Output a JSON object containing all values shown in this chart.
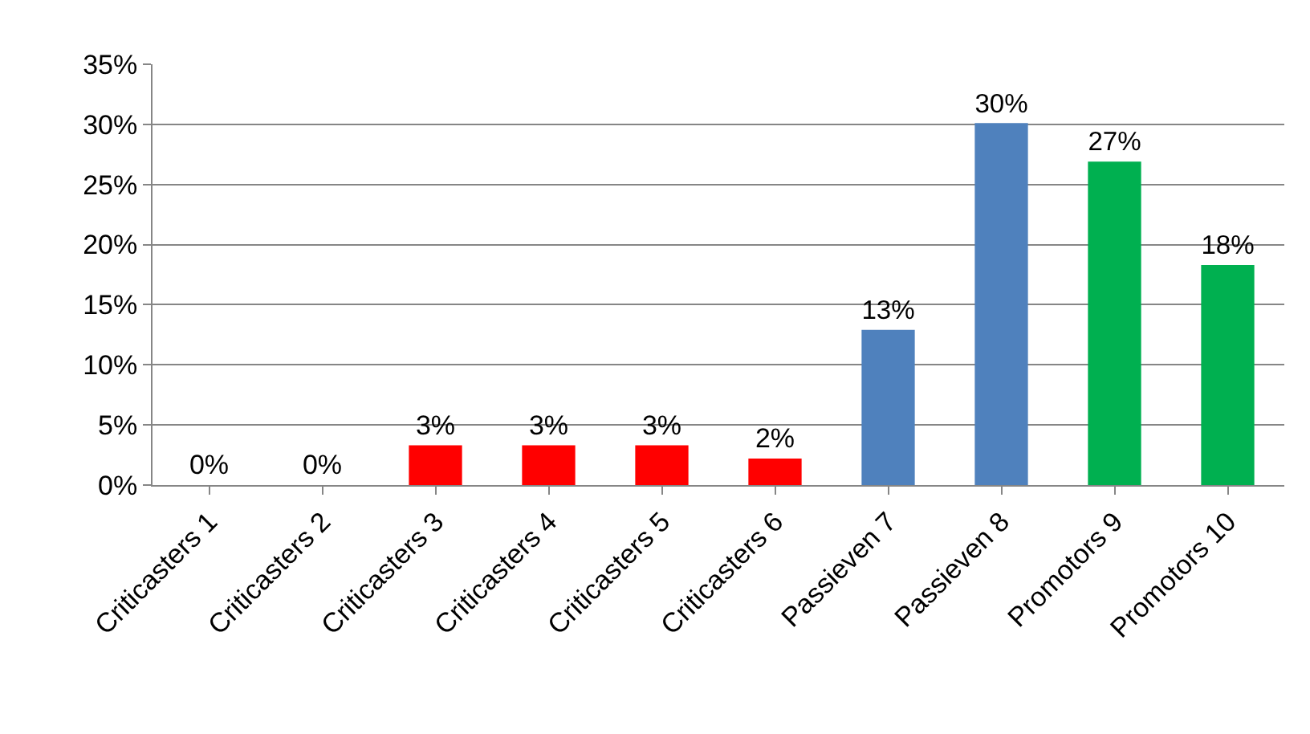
{
  "chart_data": {
    "type": "bar",
    "categories": [
      "Criticasters 1",
      "Criticasters 2",
      "Criticasters 3",
      "Criticasters 4",
      "Criticasters 5",
      "Criticasters 6",
      "Passieven 7",
      "Passieven 8",
      "Promotors 9",
      "Promotors 10"
    ],
    "values": [
      0,
      0,
      3.3,
      3.3,
      3.3,
      2.2,
      12.9,
      30.1,
      26.9,
      18.3
    ],
    "colors": [
      "#ff0000",
      "#ff0000",
      "#ff0000",
      "#ff0000",
      "#ff0000",
      "#ff0000",
      "#4f81bd",
      "#4f81bd",
      "#00b050",
      "#00b050"
    ],
    "value_labels": [
      "0%",
      "0%",
      "3%",
      "3%",
      "3%",
      "2%",
      "13%",
      "30%",
      "27%",
      "18%"
    ],
    "ylim": [
      0,
      35
    ],
    "yticks": [
      {
        "value": 0,
        "label": "0%"
      },
      {
        "value": 5,
        "label": "5%"
      },
      {
        "value": 10,
        "label": "10%"
      },
      {
        "value": 15,
        "label": "15%"
      },
      {
        "value": 20,
        "label": "20%"
      },
      {
        "value": 25,
        "label": "25%"
      },
      {
        "value": 30,
        "label": "30%"
      },
      {
        "value": 35,
        "label": "35%"
      }
    ],
    "grid": "y",
    "legend": false
  }
}
